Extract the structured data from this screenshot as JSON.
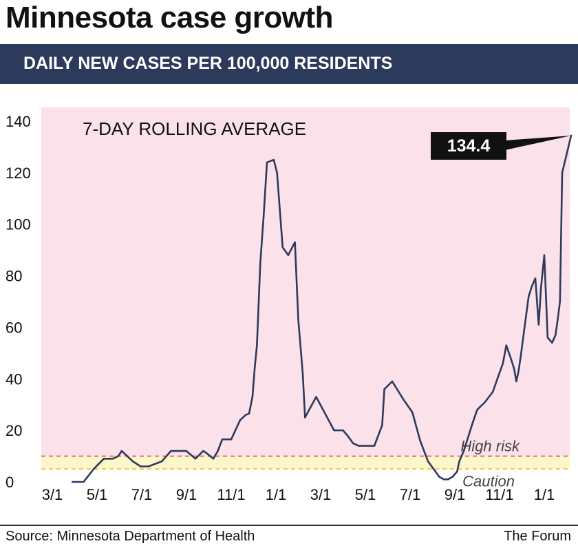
{
  "header": {
    "title": "Minnesota case growth",
    "subtitle": "DAILY NEW CASES PER 100,000 RESIDENTS"
  },
  "footer": {
    "source": "Source: Minnesota Department of Health",
    "credit": "The Forum"
  },
  "colors": {
    "plot_background": "#fbe1ea",
    "line": "#2c3a5c",
    "high_risk_line": "#e0707a",
    "caution_band": "#fdf6c8",
    "caution_line": "#e8c84a",
    "callout_bg": "#111111",
    "callout_text": "#ffffff"
  },
  "chart_data": {
    "type": "line",
    "title": "7-DAY ROLLING AVERAGE",
    "xlabel": "",
    "ylabel": "",
    "ylim": [
      0,
      140
    ],
    "yticks": [
      0,
      20,
      40,
      60,
      80,
      100,
      120,
      140
    ],
    "ytick_labels": [
      "0",
      "20",
      "40",
      "60",
      "80",
      "100",
      "120",
      "140"
    ],
    "xlim": [
      0,
      23.5
    ],
    "xticks": [
      0,
      2,
      4,
      6,
      8,
      10,
      12,
      14,
      16,
      18,
      20,
      22
    ],
    "xtick_labels": [
      "3/1",
      "5/1",
      "7/1",
      "9/1",
      "11/1",
      "1/1",
      "3/1",
      "5/1",
      "7/1",
      "9/1",
      "11/1",
      "1/1"
    ],
    "x_unit": "months since March 1, 2020",
    "thresholds": [
      {
        "name": "High risk",
        "value": 10
      },
      {
        "name": "Caution",
        "value": 5
      }
    ],
    "annotation": {
      "label": "134.4",
      "value": 134.4
    },
    "series": [
      {
        "name": "7-day rolling average",
        "x": [
          0.9,
          1.4,
          1.85,
          2.3,
          2.7,
          2.95,
          3.1,
          3.6,
          3.95,
          4.3,
          4.6,
          4.9,
          5.3,
          5.6,
          6.0,
          6.4,
          6.75,
          6.85,
          7.2,
          7.4,
          7.6,
          7.8,
          8.0,
          8.4,
          8.65,
          8.8,
          8.95,
          9.05,
          9.15,
          9.3,
          9.45,
          9.6,
          9.9,
          10.05,
          10.3,
          10.55,
          10.85,
          11.0,
          11.2,
          11.3,
          11.8,
          12.6,
          13.0,
          13.2,
          13.45,
          13.7,
          14.05,
          14.4,
          14.75,
          14.85,
          15.2,
          15.7,
          16.1,
          16.45,
          16.8,
          17.3,
          17.5,
          17.7,
          17.9,
          18.1,
          18.2,
          18.4,
          18.8,
          19.0,
          19.35,
          19.7,
          19.9,
          20.15,
          20.3,
          20.5,
          20.65,
          20.75,
          20.85,
          20.95,
          21.1,
          21.3,
          21.45,
          21.6,
          21.75,
          21.85,
          22.0,
          22.15,
          22.35,
          22.5,
          22.6,
          22.7,
          22.8,
          23.2
        ],
        "values": [
          0,
          0,
          5,
          9,
          9,
          10,
          12,
          8,
          6,
          6,
          7,
          8,
          12,
          12,
          12,
          9,
          12,
          11.5,
          9,
          12,
          16.5,
          16.5,
          16.5,
          24,
          26,
          26.5,
          33,
          44,
          53,
          85,
          103,
          124,
          125,
          120,
          91,
          88,
          93,
          63,
          42,
          25,
          33,
          20,
          20,
          18,
          15,
          14,
          14,
          14,
          22,
          36,
          39,
          32,
          27,
          16,
          8,
          2,
          1,
          1,
          2,
          4,
          8,
          12,
          23,
          28,
          31,
          35,
          40,
          46,
          53,
          48,
          44,
          39,
          43,
          49,
          59,
          72,
          76,
          79,
          61,
          75,
          88,
          56,
          54,
          57,
          63,
          70,
          120,
          134.4
        ]
      }
    ]
  }
}
